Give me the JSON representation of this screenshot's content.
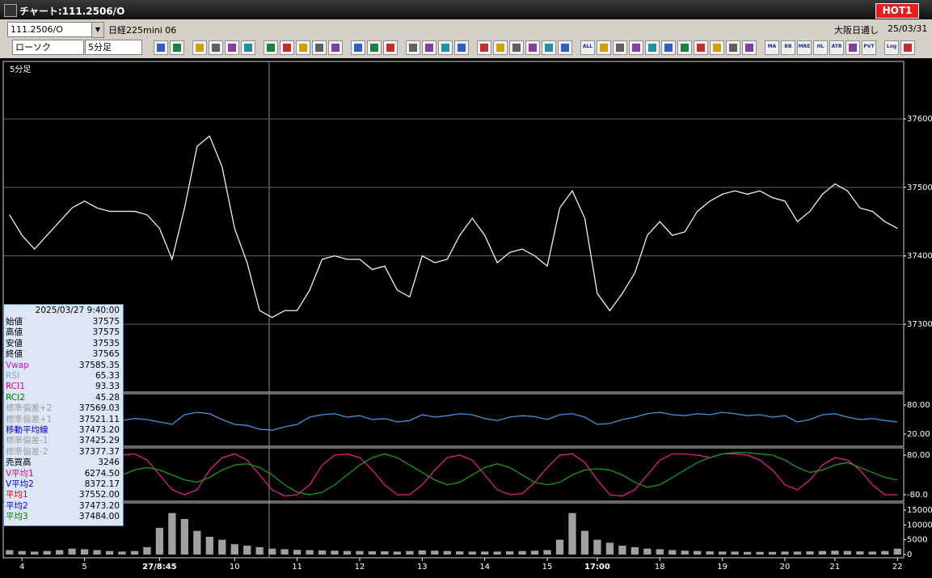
{
  "window_title": "チャート:111.2506/O",
  "hot_button": "HOT1",
  "symbol_box": "111.2506/O",
  "instrument": "日経225mini 06",
  "market": "大阪日通し",
  "date": "25/03/31",
  "chart_type_select": "ローソク",
  "interval_select": "5分足",
  "toolbar_icon_labels": [
    "ALL",
    "MA",
    "BB",
    "MRE",
    "HL",
    "ATR",
    "PVT",
    "Log"
  ],
  "info_panel": {
    "timestamp": "2025/03/27 9:40:00",
    "rows": [
      {
        "label": "始値",
        "value": "37575",
        "color": "#000000"
      },
      {
        "label": "高値",
        "value": "37575",
        "color": "#000000"
      },
      {
        "label": "安値",
        "value": "37535",
        "color": "#000000"
      },
      {
        "label": "終値",
        "value": "37565",
        "color": "#000000"
      },
      {
        "label": "Vwap",
        "value": "37585.35",
        "color": "#e000e0"
      },
      {
        "label": "RSI",
        "value": "65.33",
        "color": "#8aa0c8"
      },
      {
        "label": "RCI1",
        "value": "93.33",
        "color": "#e0008a"
      },
      {
        "label": "RCI2",
        "value": "45.28",
        "color": "#007a00"
      },
      {
        "label": "標準偏差+2",
        "value": "37569.03",
        "color": "#a0a0a0"
      },
      {
        "label": "標準偏差+1",
        "value": "37521.11",
        "color": "#a0a0a0"
      },
      {
        "label": "移動平均線",
        "value": "37473.20",
        "color": "#0000c0"
      },
      {
        "label": "標準偏差-1",
        "value": "37425.29",
        "color": "#a0a0a0"
      },
      {
        "label": "標準偏差-2",
        "value": "37377.37",
        "color": "#a0a0a0"
      },
      {
        "label": "売買高",
        "value": "3246",
        "color": "#000000"
      },
      {
        "label": "V平均1",
        "value": "6274.50",
        "color": "#e0008a"
      },
      {
        "label": "V平均2",
        "value": "8372.17",
        "color": "#0000e0"
      },
      {
        "label": "平均1",
        "value": "37552.00",
        "color": "#e00000"
      },
      {
        "label": "平均2",
        "value": "37473.20",
        "color": "#0000e0"
      },
      {
        "label": "平均3",
        "value": "37484.00",
        "color": "#007a00"
      }
    ]
  },
  "chart_data": [
    {
      "type": "line",
      "title": "5分足",
      "categories": [
        null,
        "4",
        null,
        null,
        null,
        null,
        "5",
        null,
        null,
        null,
        null,
        null,
        "27/8:45",
        null,
        null,
        null,
        null,
        null,
        "10",
        null,
        null,
        null,
        null,
        "11",
        null,
        null,
        null,
        null,
        "12",
        null,
        null,
        null,
        null,
        "13",
        null,
        null,
        null,
        null,
        "14",
        null,
        null,
        null,
        null,
        "15",
        null,
        null,
        null,
        "17:00",
        null,
        null,
        null,
        null,
        "18",
        null,
        null,
        null,
        null,
        "19",
        null,
        null,
        null,
        null,
        "20",
        null,
        null,
        null,
        "21",
        null,
        null,
        null,
        null,
        "22"
      ],
      "series": [
        {
          "color": "#f0f0f0",
          "values": [
            37460,
            37430,
            37410,
            37430,
            37450,
            37470,
            37480,
            37470,
            37465,
            37465,
            37465,
            37460,
            37440,
            37395,
            37470,
            37560,
            37575,
            37530,
            37440,
            37390,
            37320,
            37310,
            37320,
            37320,
            37350,
            37395,
            37400,
            37395,
            37395,
            37380,
            37385,
            37350,
            37340,
            37400,
            37390,
            37395,
            37430,
            37455,
            37430,
            37390,
            37405,
            37410,
            37400,
            37385,
            37470,
            37495,
            37455,
            37345,
            37320,
            37345,
            37375,
            37430,
            37450,
            37430,
            37435,
            37465,
            37480,
            37490,
            37495,
            37490,
            37495,
            37485,
            37480,
            37450,
            37465,
            37490,
            37505,
            37495,
            37470,
            37465,
            37450,
            37440
          ]
        }
      ],
      "ylim": [
        37201,
        37684
      ],
      "yticks": [
        37600,
        37500,
        37400,
        37300
      ],
      "grid": true
    },
    {
      "type": "line",
      "series": [
        {
          "color": "#4a90e0",
          "values": [
            45,
            50,
            40,
            55,
            60,
            45,
            50,
            55,
            50,
            48,
            52,
            50,
            45,
            40,
            60,
            65,
            62,
            50,
            40,
            38,
            30,
            28,
            35,
            40,
            55,
            60,
            62,
            55,
            58,
            50,
            52,
            45,
            48,
            60,
            55,
            58,
            62,
            60,
            52,
            48,
            55,
            58,
            56,
            50,
            60,
            62,
            55,
            40,
            42,
            50,
            55,
            62,
            65,
            60,
            58,
            62,
            60,
            65,
            62,
            58,
            60,
            55,
            58,
            45,
            50,
            60,
            62,
            55,
            50,
            52,
            48,
            45
          ]
        }
      ],
      "ylim": [
        -5,
        103.3
      ],
      "yticks": [
        {
          "value": 80,
          "label": "80.00"
        },
        {
          "value": 20,
          "label": "20.00"
        }
      ]
    },
    {
      "type": "line",
      "series": [
        {
          "color": "#e0208a",
          "values": [
            60,
            80,
            70,
            20,
            -40,
            -80,
            -70,
            -20,
            40,
            80,
            85,
            60,
            0,
            -60,
            -80,
            -60,
            20,
            70,
            85,
            60,
            0,
            -60,
            -85,
            -80,
            -40,
            40,
            80,
            85,
            70,
            20,
            -40,
            -80,
            -80,
            -40,
            20,
            70,
            80,
            60,
            0,
            -60,
            -80,
            -75,
            -30,
            30,
            80,
            85,
            50,
            -20,
            -80,
            -85,
            -60,
            0,
            60,
            85,
            85,
            80,
            70,
            85,
            85,
            80,
            60,
            20,
            -40,
            -60,
            -20,
            40,
            70,
            60,
            20,
            -40,
            -80,
            -80
          ]
        },
        {
          "color": "#1a9a1a",
          "values": [
            80,
            75,
            60,
            40,
            20,
            0,
            -20,
            -30,
            -20,
            0,
            20,
            30,
            20,
            0,
            -20,
            -30,
            -10,
            20,
            40,
            45,
            30,
            0,
            -40,
            -70,
            -80,
            -70,
            -40,
            0,
            40,
            70,
            85,
            70,
            40,
            10,
            -20,
            -40,
            -30,
            0,
            30,
            45,
            30,
            0,
            -30,
            -40,
            -30,
            0,
            20,
            25,
            20,
            0,
            -30,
            -50,
            -40,
            -10,
            20,
            50,
            70,
            85,
            90,
            90,
            85,
            80,
            60,
            30,
            10,
            20,
            40,
            50,
            30,
            10,
            -10,
            -20
          ]
        }
      ],
      "ylim": [
        -106.1,
        109.4
      ],
      "yticks": [
        {
          "value": 80,
          "label": "80.00"
        },
        {
          "value": -80,
          "label": "-80.0"
        }
      ]
    },
    {
      "type": "bar",
      "color": "#a0a0a0",
      "values": [
        1500,
        1200,
        1000,
        1200,
        1500,
        2000,
        1800,
        1500,
        1200,
        1000,
        1200,
        2500,
        9000,
        14000,
        12000,
        8000,
        6000,
        5000,
        3500,
        3000,
        2500,
        2000,
        1800,
        1600,
        1500,
        1400,
        1300,
        1200,
        1200,
        1100,
        1100,
        1000,
        1200,
        1400,
        1300,
        1200,
        1100,
        1000,
        1000,
        1000,
        1100,
        1200,
        1300,
        1500,
        5000,
        14000,
        8000,
        5000,
        4000,
        3000,
        2500,
        2000,
        1800,
        1500,
        1300,
        1200,
        1100,
        1000,
        1000,
        900,
        900,
        900,
        1000,
        1000,
        1100,
        1200,
        1300,
        1200,
        1100,
        1000,
        1200,
        2000
      ],
      "ylim": [
        -1091,
        17455
      ],
      "yticks": [
        15000,
        10000,
        5000,
        0
      ]
    }
  ]
}
